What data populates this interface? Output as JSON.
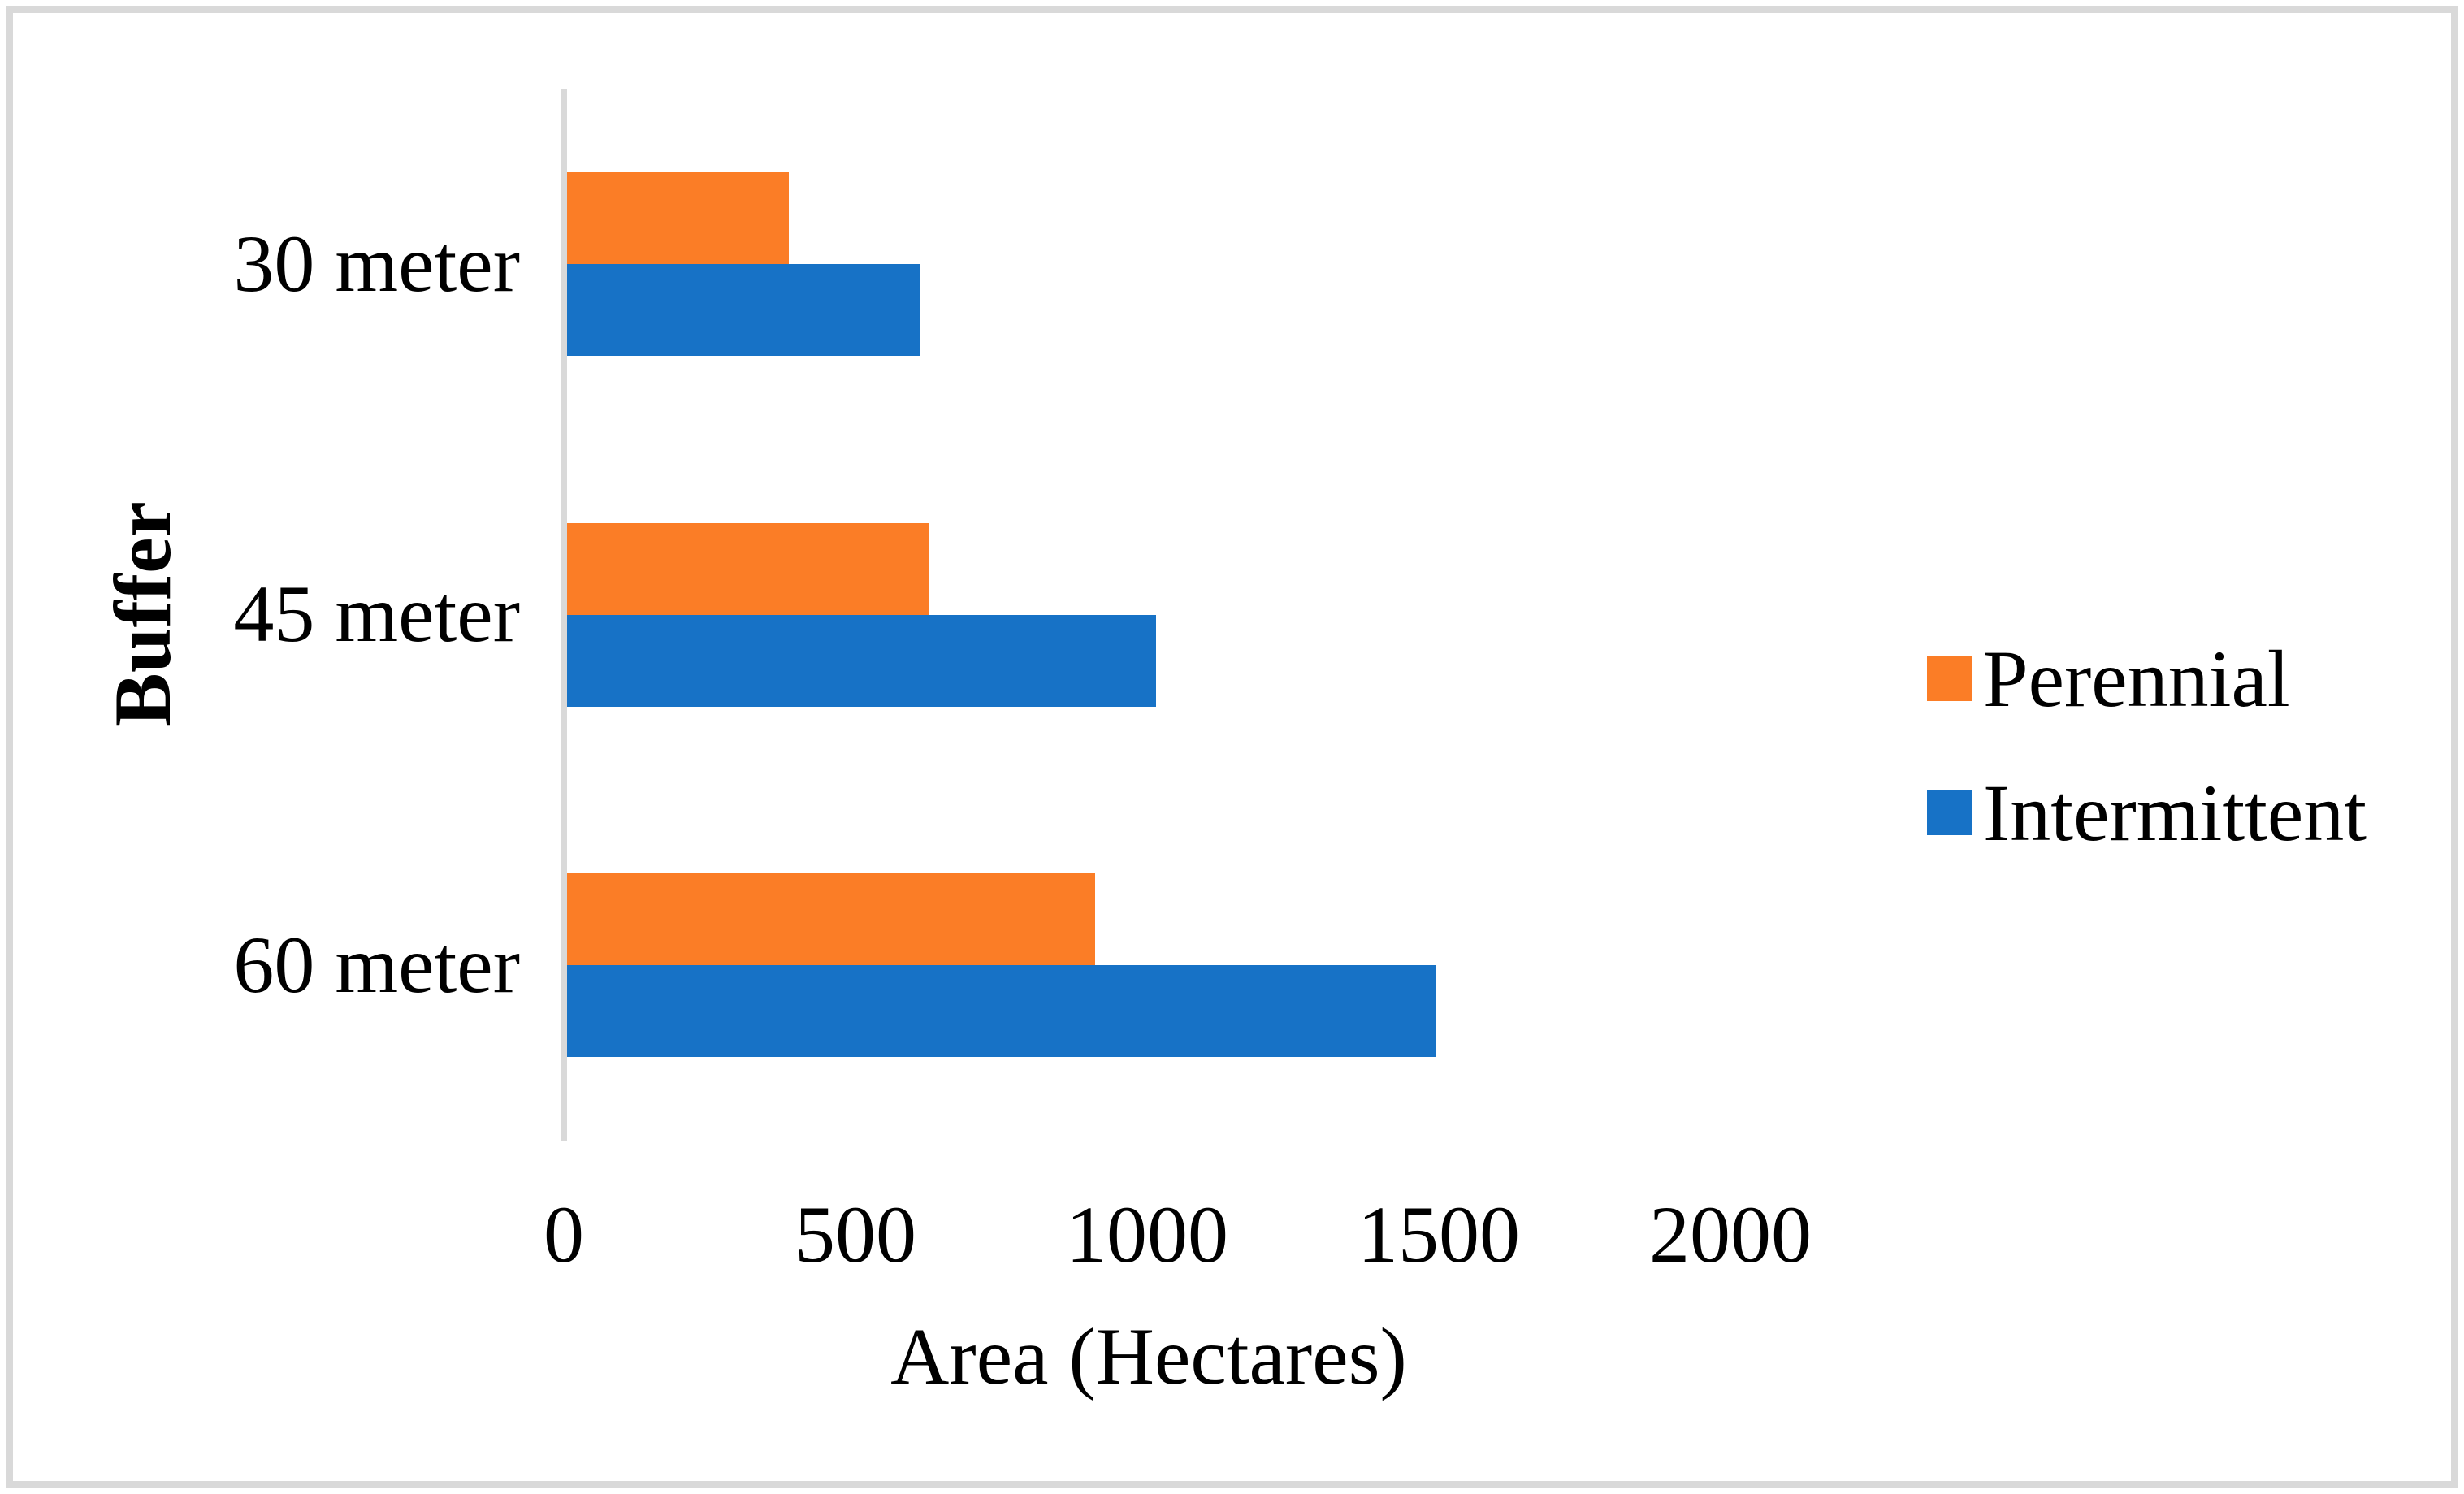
{
  "chart_data": {
    "type": "bar",
    "orientation": "horizontal",
    "title": "",
    "categories": [
      "30 meter",
      "45 meter",
      "60 meter"
    ],
    "series": [
      {
        "name": "Perennial",
        "color": "#FB7D26",
        "values": [
          385,
          625,
          910
        ]
      },
      {
        "name": "Intermittent",
        "color": "#1772C6",
        "values": [
          610,
          1015,
          1495
        ]
      }
    ],
    "xlabel": "Area (Hectares)",
    "ylabel": "Buffer",
    "xlim": [
      0,
      2000
    ],
    "xticks": [
      "0",
      "500",
      "1000",
      "1500",
      "2000"
    ],
    "grid": false,
    "legend_position": "right",
    "colors": {
      "axis_line": "#D9D9D9",
      "frame_border": "#D9D9D9",
      "text": "#000000",
      "background": "#FFFFFF"
    }
  }
}
